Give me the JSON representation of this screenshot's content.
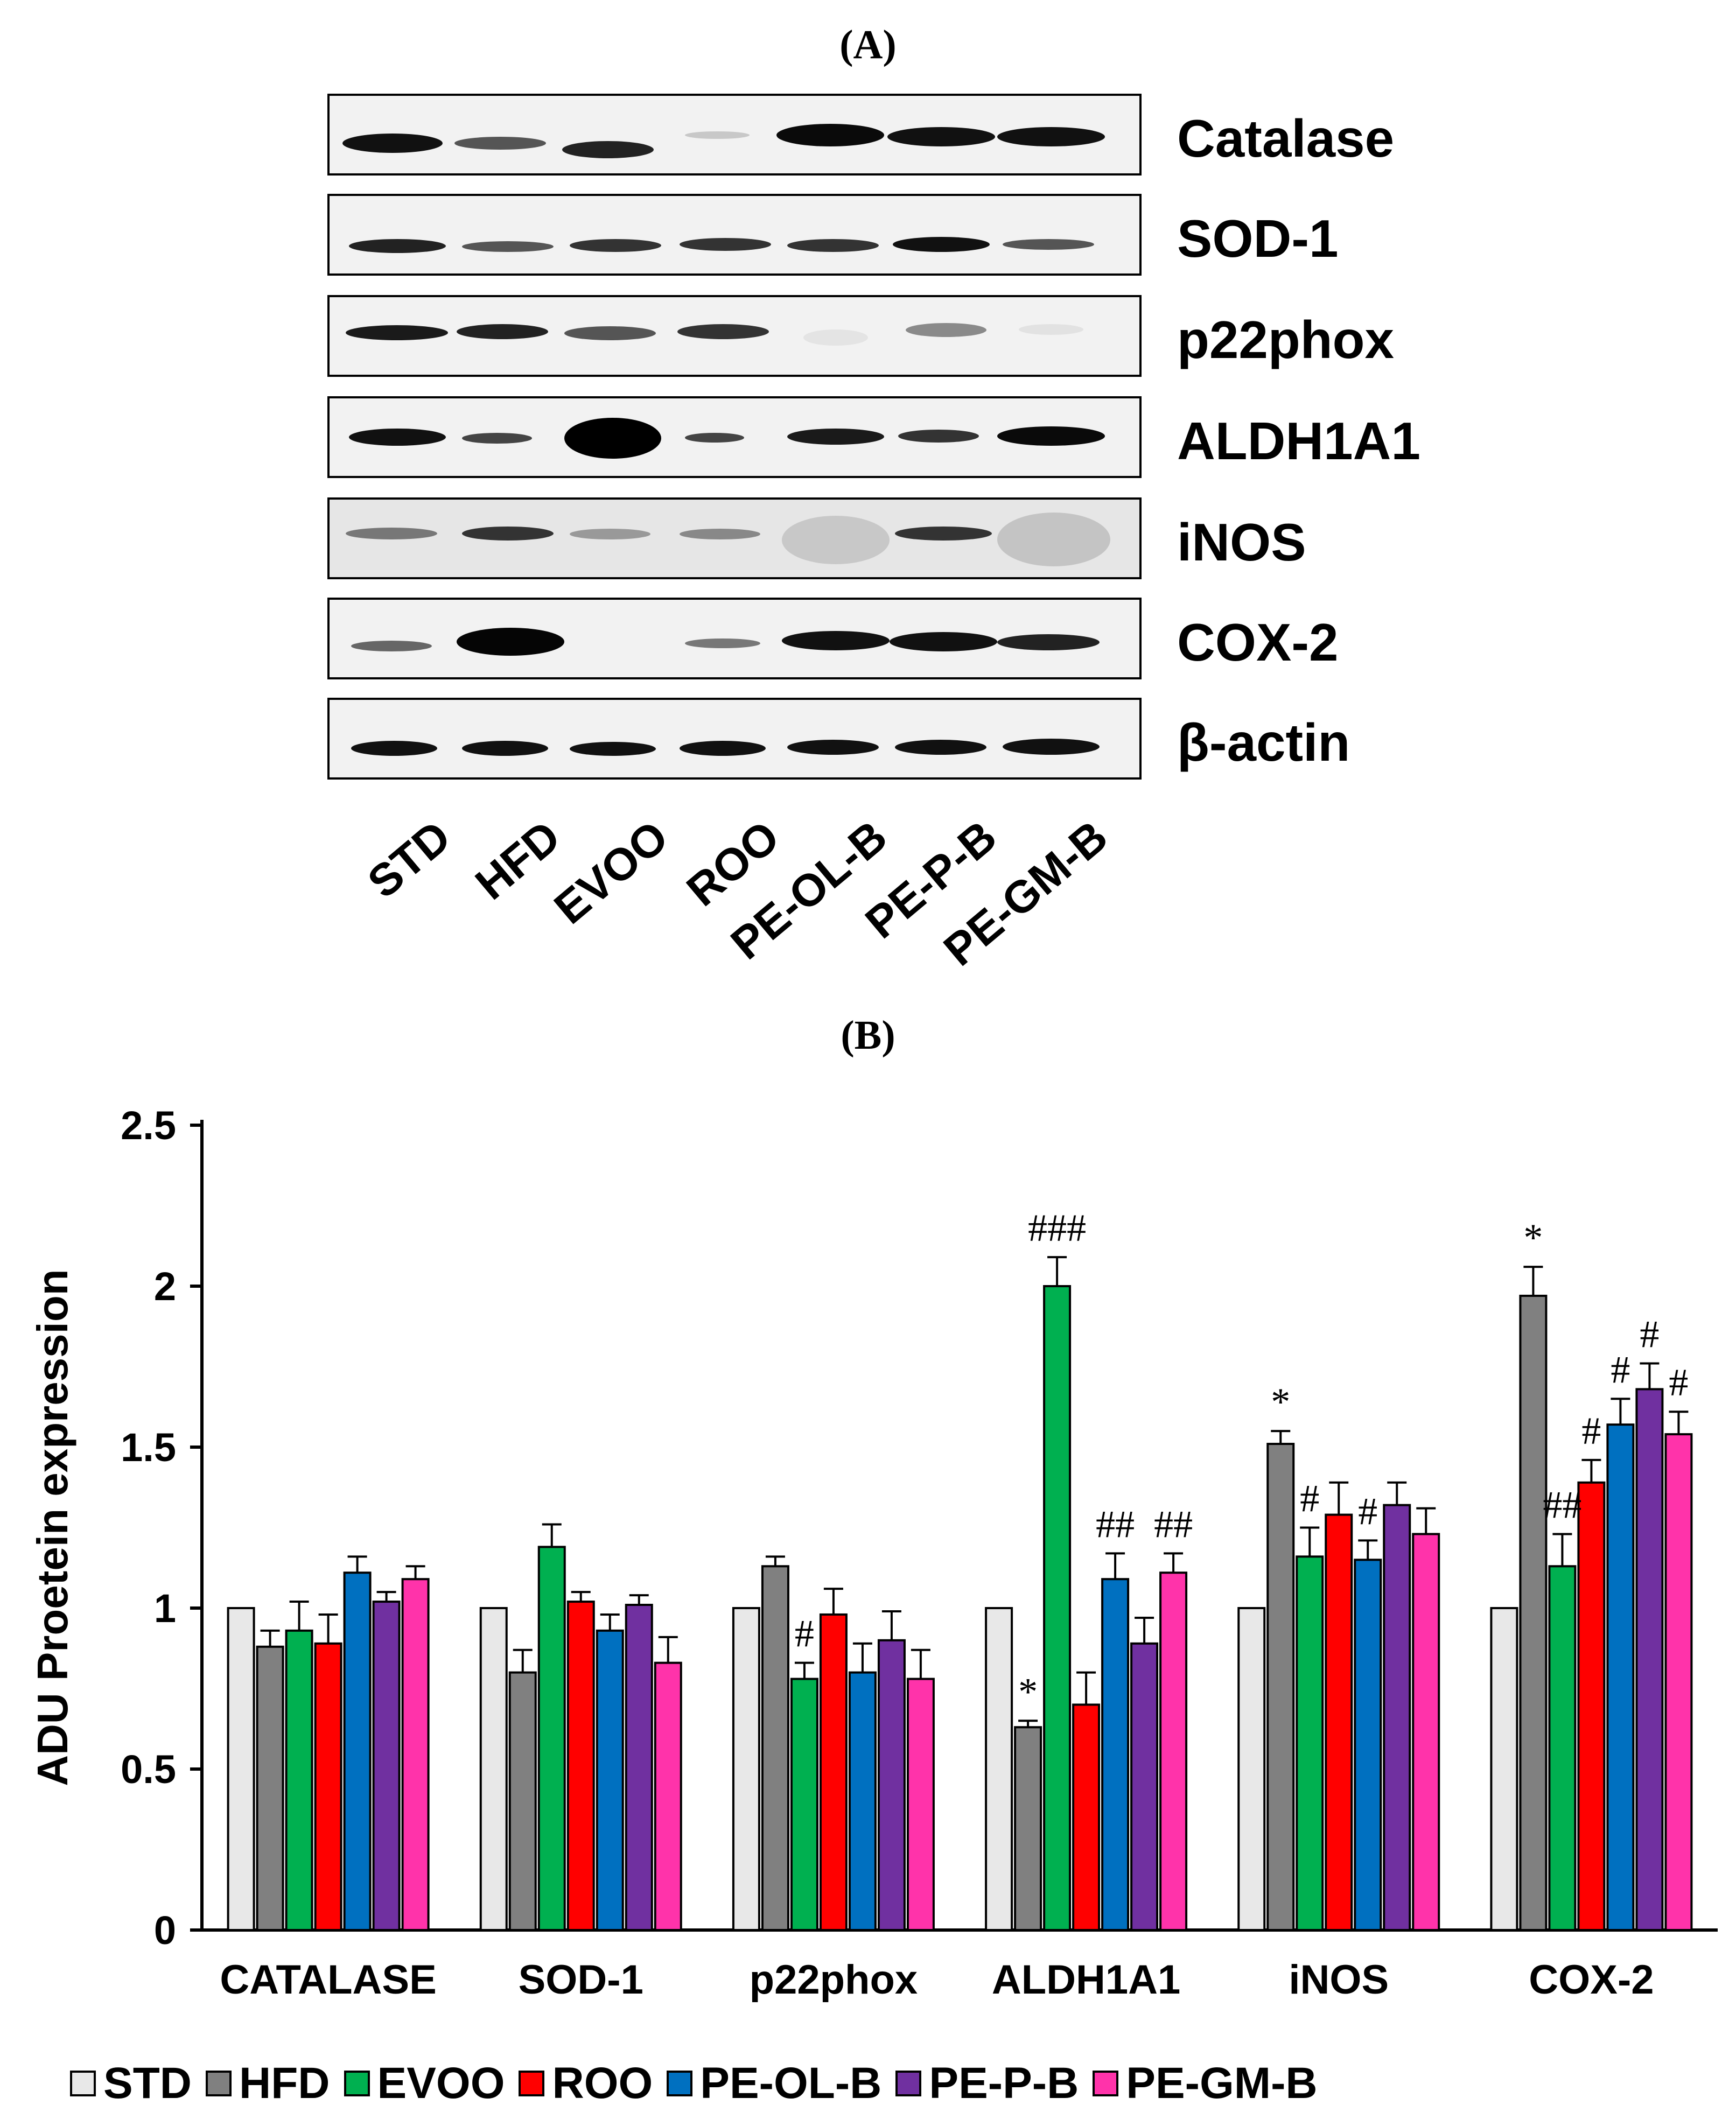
{
  "panel_a": {
    "label": "(A)",
    "proteins": [
      "Catalase",
      "SOD-1",
      "p22phox",
      "ALDH1A1",
      "iNOS",
      "COX-2",
      "β-actin"
    ],
    "lanes": [
      "STD",
      "HFD",
      "EVOO",
      "ROO",
      "PE-OL-B",
      "PE-P-B",
      "PE-GM-B"
    ]
  },
  "panel_b": {
    "label": "(B)"
  },
  "chart_data": {
    "type": "bar",
    "title": "",
    "xlabel": "",
    "ylabel": "ADU Proetein expression",
    "ylim": [
      0,
      2.5
    ],
    "yticks": [
      "0",
      "0.5",
      "1",
      "1.5",
      "2",
      "2.5"
    ],
    "grid": false,
    "legend_position": "bottom",
    "categories": [
      "CATALASE",
      "SOD-1",
      "p22phox",
      "ALDH1A1",
      "iNOS",
      "COX-2"
    ],
    "series": [
      {
        "name": "STD",
        "color": "#e8e8e8",
        "values": [
          1.0,
          1.0,
          1.0,
          1.0,
          1.0,
          1.0
        ],
        "errors": [
          0,
          0,
          0,
          0,
          0,
          0
        ],
        "annotations": [
          "",
          "",
          "",
          "",
          "",
          ""
        ]
      },
      {
        "name": "HFD",
        "color": "#808080",
        "values": [
          0.88,
          0.8,
          1.13,
          0.63,
          1.51,
          1.97
        ],
        "errors": [
          0.05,
          0.07,
          0.03,
          0.02,
          0.04,
          0.09
        ],
        "annotations": [
          "",
          "",
          "",
          "*",
          "*",
          "*"
        ]
      },
      {
        "name": "EVOO",
        "color": "#00b050",
        "values": [
          0.93,
          1.19,
          0.78,
          2.0,
          1.16,
          1.13
        ],
        "errors": [
          0.09,
          0.07,
          0.05,
          0.09,
          0.09,
          0.1
        ],
        "annotations": [
          "",
          "",
          "#",
          "###",
          "#",
          "##"
        ]
      },
      {
        "name": "ROO",
        "color": "#ff0000",
        "values": [
          0.89,
          1.02,
          0.98,
          0.7,
          1.29,
          1.39
        ],
        "errors": [
          0.09,
          0.03,
          0.08,
          0.1,
          0.1,
          0.07
        ],
        "annotations": [
          "",
          "",
          "",
          "",
          "",
          "#"
        ]
      },
      {
        "name": "PE-OL-B",
        "color": "#0070c0",
        "values": [
          1.11,
          0.93,
          0.8,
          1.09,
          1.15,
          1.57
        ],
        "errors": [
          0.05,
          0.05,
          0.09,
          0.08,
          0.06,
          0.08
        ],
        "annotations": [
          "",
          "",
          "",
          "##",
          "#",
          "#"
        ]
      },
      {
        "name": "PE-P-B",
        "color": "#7030a0",
        "values": [
          1.02,
          1.01,
          0.9,
          0.89,
          1.32,
          1.68
        ],
        "errors": [
          0.03,
          0.03,
          0.09,
          0.08,
          0.07,
          0.08
        ],
        "annotations": [
          "",
          "",
          "",
          "",
          "",
          "#"
        ]
      },
      {
        "name": "PE-GM-B",
        "color": "#ff33aa",
        "values": [
          1.09,
          0.83,
          0.78,
          1.11,
          1.23,
          1.54
        ],
        "errors": [
          0.04,
          0.08,
          0.09,
          0.06,
          0.08,
          0.07
        ],
        "annotations": [
          "",
          "",
          "",
          "##",
          "",
          "#"
        ]
      }
    ]
  }
}
